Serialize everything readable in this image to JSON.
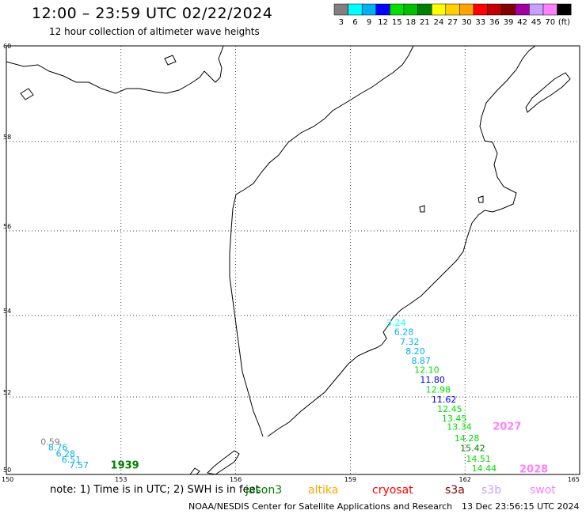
{
  "title": "12:00 – 23:59 UTC 02/22/2024",
  "subtitle": "12 hour collection of altimeter wave heights",
  "legend": {
    "unit": "(ft)",
    "bins": [
      {
        "label": "3",
        "color": "#808080"
      },
      {
        "label": "6",
        "color": "#00ffff"
      },
      {
        "label": "9",
        "color": "#00b0f0"
      },
      {
        "label": "12",
        "color": "#0000ff"
      },
      {
        "label": "15",
        "color": "#00e000"
      },
      {
        "label": "18",
        "color": "#00c000"
      },
      {
        "label": "21",
        "color": "#008000"
      },
      {
        "label": "24",
        "color": "#ffff00"
      },
      {
        "label": "27",
        "color": "#ffd000"
      },
      {
        "label": "30",
        "color": "#ffa500"
      },
      {
        "label": "33",
        "color": "#ff0000"
      },
      {
        "label": "36",
        "color": "#c00000"
      },
      {
        "label": "39",
        "color": "#800000"
      },
      {
        "label": "42",
        "color": "#a000a0"
      },
      {
        "label": "45",
        "color": "#c8a0ff"
      },
      {
        "label": "70",
        "color": "#ff80ff"
      },
      {
        "label": "",
        "color": "#000000"
      }
    ]
  },
  "axes": {
    "lat_ticks": [
      "60",
      "58",
      "56",
      "54",
      "52",
      "50"
    ],
    "lon_ticks": [
      "150",
      "153",
      "156",
      "159",
      "162",
      "165"
    ]
  },
  "observations": [
    {
      "text": "0.59",
      "lon": 151.15,
      "lat": 50.77,
      "color": "#808080"
    },
    {
      "text": "8.76",
      "lon": 151.35,
      "lat": 50.62,
      "color": "#00b0f0"
    },
    {
      "text": "6.28",
      "lon": 151.55,
      "lat": 50.46,
      "color": "#00b0f0"
    },
    {
      "text": "6.51",
      "lon": 151.7,
      "lat": 50.31,
      "color": "#00b0f0"
    },
    {
      "text": "7.57",
      "lon": 151.9,
      "lat": 50.16,
      "color": "#00b0f0"
    },
    {
      "text": "3.24",
      "lon": 160.2,
      "lat": 53.75,
      "color": "#00ffff"
    },
    {
      "text": "6.28",
      "lon": 160.4,
      "lat": 53.52,
      "color": "#00b0f0"
    },
    {
      "text": "7.32",
      "lon": 160.55,
      "lat": 53.28,
      "color": "#00b0f0"
    },
    {
      "text": "8.20",
      "lon": 160.7,
      "lat": 53.05,
      "color": "#00b0f0"
    },
    {
      "text": "8.87",
      "lon": 160.85,
      "lat": 52.82,
      "color": "#00b0f0"
    },
    {
      "text": "12.10",
      "lon": 161.0,
      "lat": 52.59,
      "color": "#00e000"
    },
    {
      "text": "11.80",
      "lon": 161.15,
      "lat": 52.35,
      "color": "#0000ff"
    },
    {
      "text": "12.98",
      "lon": 161.3,
      "lat": 52.11,
      "color": "#00e000"
    },
    {
      "text": "11.62",
      "lon": 161.45,
      "lat": 51.86,
      "color": "#0000ff"
    },
    {
      "text": "12.45",
      "lon": 161.6,
      "lat": 51.61,
      "color": "#00e000"
    },
    {
      "text": "13.45",
      "lon": 161.72,
      "lat": 51.37,
      "color": "#00e000"
    },
    {
      "text": "13.34",
      "lon": 161.85,
      "lat": 51.15,
      "color": "#00e000"
    },
    {
      "text": "14.28",
      "lon": 162.05,
      "lat": 50.86,
      "color": "#00e000"
    },
    {
      "text": "15.42",
      "lon": 162.2,
      "lat": 50.6,
      "color": "#008000"
    },
    {
      "text": "14.51",
      "lon": 162.35,
      "lat": 50.33,
      "color": "#00e000"
    },
    {
      "text": "14.44",
      "lon": 162.5,
      "lat": 50.08,
      "color": "#00e000"
    }
  ],
  "pass_times": [
    {
      "text": "1939",
      "lon": 153.1,
      "lat": 50.15,
      "color": "#008000"
    },
    {
      "text": "2027",
      "lon": 163.1,
      "lat": 51.15,
      "color": "#ff80ff"
    },
    {
      "text": "2028",
      "lon": 163.8,
      "lat": 50.05,
      "color": "#ff80ff"
    }
  ],
  "note": "note: 1) Time is in UTC; 2) SWH is in feet",
  "satellites": [
    {
      "name": "jason3",
      "color": "#008000"
    },
    {
      "name": "altika",
      "color": "#ffa500"
    },
    {
      "name": "cryosat",
      "color": "#ff0000"
    },
    {
      "name": "s3a",
      "color": "#800000"
    },
    {
      "name": "s3b",
      "color": "#c8a0ff"
    },
    {
      "name": "swot",
      "color": "#ff80ff"
    }
  ],
  "credit": "NOAA/NESDIS Center for Satellite Applications and Research",
  "generated": "13 Dec 23:56:15 UTC 2024"
}
